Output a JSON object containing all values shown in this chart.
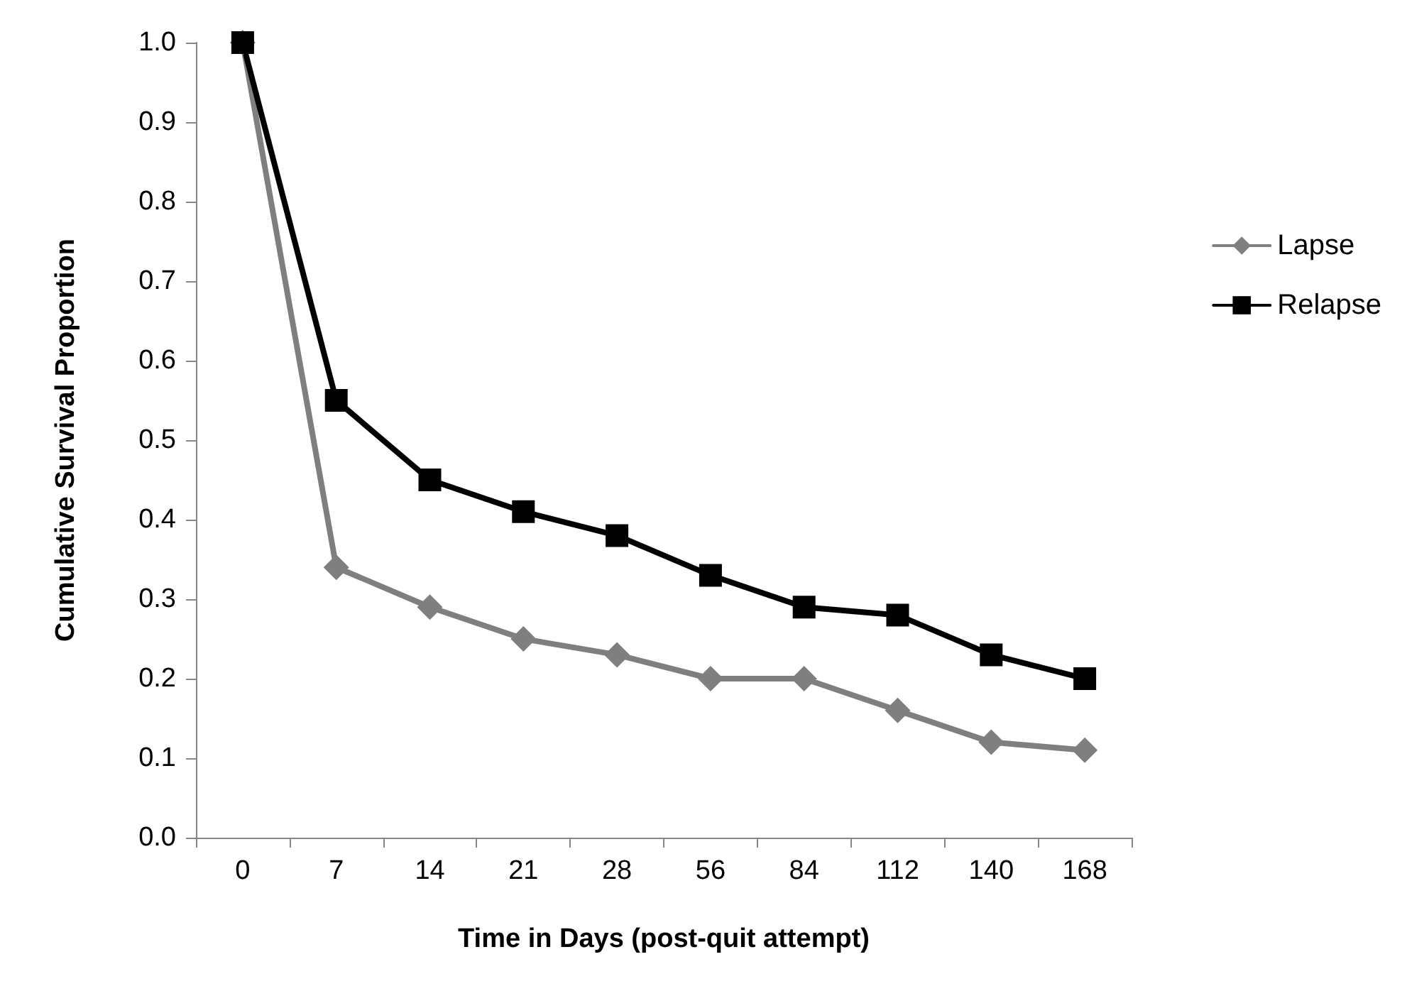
{
  "chart_data": {
    "type": "line",
    "xlabel": "Time in Days (post-quit attempt)",
    "ylabel": "Cumulative Survival Proportion",
    "categories": [
      "0",
      "7",
      "14",
      "21",
      "28",
      "56",
      "84",
      "112",
      "140",
      "168"
    ],
    "series": [
      {
        "name": "Lapse",
        "color": "#7f7f7f",
        "marker": "diamond",
        "values": [
          1.0,
          0.34,
          0.29,
          0.25,
          0.23,
          0.2,
          0.2,
          0.16,
          0.12,
          0.11
        ]
      },
      {
        "name": "Relapse",
        "color": "#000000",
        "marker": "square",
        "values": [
          1.0,
          0.55,
          0.45,
          0.41,
          0.38,
          0.33,
          0.29,
          0.28,
          0.23,
          0.2
        ]
      }
    ],
    "ylim": [
      0,
      1
    ],
    "yticks": [
      {
        "value": 0,
        "label": "0.0"
      },
      0.1,
      0.2,
      0.3,
      0.4,
      0.5,
      0.6,
      0.7,
      0.8,
      0.9,
      {
        "value": 1,
        "label": "1.0"
      }
    ],
    "grid": false,
    "legend": "right",
    "line_style": "solid"
  }
}
